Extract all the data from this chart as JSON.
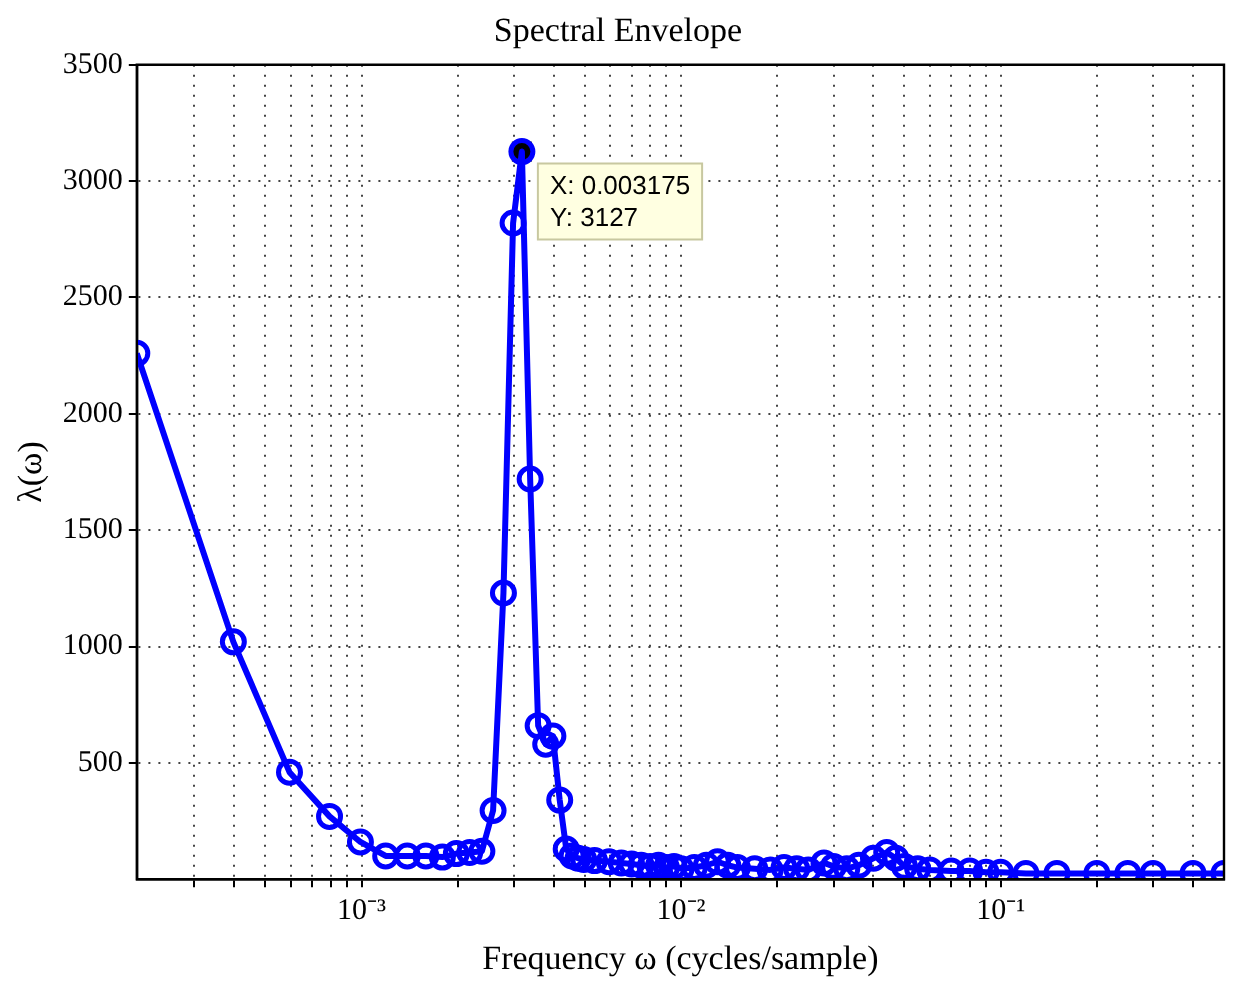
{
  "chart_data": {
    "type": "line",
    "title": "Spectral Envelope",
    "xlabel": "Frequency ω (cycles/sample)",
    "ylabel": "λ(ω)",
    "log": "x",
    "grid": true,
    "legend": false,
    "marker": "circle",
    "line_style": "solid",
    "xlim": [
      0.000198,
      0.5
    ],
    "ylim": [
      0,
      3500
    ],
    "xticks": [
      {
        "value": 0.0003,
        "label": null
      },
      {
        "value": 0.0004,
        "label": null
      },
      {
        "value": 0.0005,
        "label": null
      },
      {
        "value": 0.0006,
        "label": null
      },
      {
        "value": 0.0007,
        "label": null
      },
      {
        "value": 0.0008,
        "label": null
      },
      {
        "value": 0.0009,
        "label": null
      },
      {
        "value": 0.001,
        "label": "10⁻³"
      },
      {
        "value": 0.002,
        "label": null
      },
      {
        "value": 0.003,
        "label": null
      },
      {
        "value": 0.004,
        "label": null
      },
      {
        "value": 0.005,
        "label": null
      },
      {
        "value": 0.006,
        "label": null
      },
      {
        "value": 0.007,
        "label": null
      },
      {
        "value": 0.008,
        "label": null
      },
      {
        "value": 0.009,
        "label": null
      },
      {
        "value": 0.01,
        "label": "10⁻²"
      },
      {
        "value": 0.02,
        "label": null
      },
      {
        "value": 0.03,
        "label": null
      },
      {
        "value": 0.04,
        "label": null
      },
      {
        "value": 0.05,
        "label": null
      },
      {
        "value": 0.06,
        "label": null
      },
      {
        "value": 0.07,
        "label": null
      },
      {
        "value": 0.08,
        "label": null
      },
      {
        "value": 0.09,
        "label": null
      },
      {
        "value": 0.1,
        "label": "10⁻¹"
      },
      {
        "value": 0.2,
        "label": null
      },
      {
        "value": 0.3,
        "label": null
      },
      {
        "value": 0.4,
        "label": null
      }
    ],
    "yticks": [
      500,
      1000,
      1500,
      2000,
      2500,
      3000,
      3500
    ],
    "annotations": [
      {
        "text": "X: 0.003175\nY: 3127",
        "x": 0.003175,
        "y": 3127
      }
    ],
    "series": [
      {
        "color": "#0000ff",
        "x": [
          0.000198,
          0.000397,
          0.000595,
          0.000794,
          0.000992,
          0.00119,
          0.00139,
          0.00159,
          0.00179,
          0.00198,
          0.00218,
          0.00238,
          0.00258,
          0.00278,
          0.00298,
          0.003175,
          0.00337,
          0.00357,
          0.00377,
          0.00397,
          0.00417,
          0.00437,
          0.00456,
          0.00476,
          0.00496,
          0.00536,
          0.00595,
          0.0065,
          0.007,
          0.0075,
          0.008,
          0.0085,
          0.009,
          0.0095,
          0.01,
          0.011,
          0.012,
          0.013,
          0.014,
          0.015,
          0.017,
          0.019,
          0.021,
          0.023,
          0.025,
          0.028,
          0.03,
          0.033,
          0.036,
          0.04,
          0.044,
          0.047,
          0.05,
          0.055,
          0.06,
          0.07,
          0.08,
          0.09,
          0.1,
          0.12,
          0.15,
          0.2,
          0.25,
          0.3,
          0.4,
          0.5
        ],
        "values": [
          2260,
          1020,
          460,
          270,
          160,
          100,
          100,
          100,
          95,
          110,
          115,
          120,
          295,
          1230,
          2820,
          3127,
          1720,
          660,
          580,
          615,
          340,
          130,
          100,
          90,
          85,
          80,
          75,
          70,
          65,
          60,
          55,
          60,
          50,
          55,
          45,
          50,
          60,
          75,
          60,
          50,
          45,
          40,
          50,
          45,
          40,
          70,
          55,
          45,
          60,
          90,
          115,
          90,
          55,
          45,
          40,
          35,
          35,
          30,
          30,
          25,
          25,
          25,
          25,
          25,
          25,
          25
        ]
      }
    ]
  }
}
